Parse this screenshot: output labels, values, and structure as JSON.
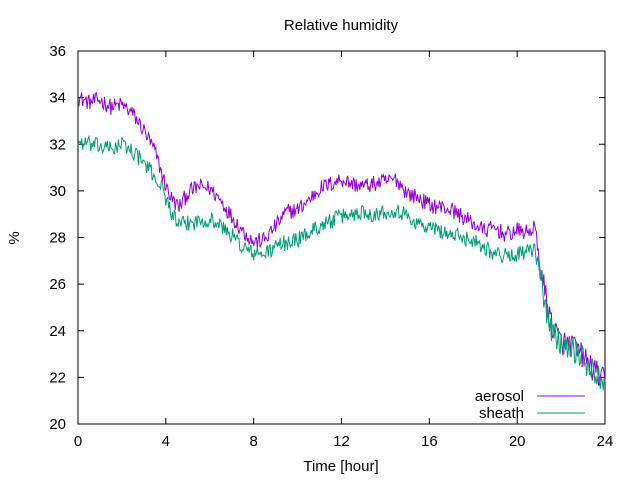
{
  "chart_data": {
    "type": "line",
    "title": "Relative humidity",
    "xlabel": "Time [hour]",
    "ylabel": "%",
    "xlim": [
      0,
      24
    ],
    "ylim": [
      20,
      36
    ],
    "x_ticks": [
      0,
      4,
      8,
      12,
      16,
      20,
      24
    ],
    "y_ticks": [
      20,
      22,
      24,
      26,
      28,
      30,
      32,
      34,
      36
    ],
    "grid": false,
    "legend_position": "bottom-right",
    "series": [
      {
        "name": "aerosol",
        "color": "#9400d3",
        "x": [
          0,
          0.5,
          1,
          1.5,
          2,
          2.5,
          3,
          3.5,
          3.8,
          4,
          4.3,
          4.6,
          5,
          5.5,
          6,
          6.5,
          7,
          7.5,
          8,
          8.5,
          9,
          9.5,
          10,
          10.5,
          11,
          11.5,
          12,
          12.5,
          13,
          13.5,
          14,
          14.5,
          15,
          15.5,
          16,
          16.5,
          17,
          17.5,
          18,
          18.5,
          19,
          19.5,
          20,
          20.5,
          20.8,
          21,
          21.3,
          21.6,
          22,
          22.5,
          23,
          23.5,
          24
        ],
        "y": [
          34.0,
          33.8,
          33.9,
          33.6,
          33.7,
          33.3,
          32.6,
          31.7,
          30.8,
          30.2,
          29.6,
          29.3,
          29.9,
          30.2,
          30.1,
          29.6,
          28.9,
          28.3,
          27.8,
          27.9,
          28.5,
          29.1,
          29.2,
          29.6,
          30.1,
          30.3,
          30.5,
          30.3,
          30.2,
          30.3,
          30.4,
          30.5,
          29.9,
          29.7,
          29.4,
          29.3,
          29.2,
          28.9,
          28.6,
          28.3,
          28.4,
          28.1,
          28.3,
          28.2,
          28.5,
          27.0,
          25.5,
          24.2,
          23.5,
          23.4,
          22.9,
          22.3,
          21.8
        ]
      },
      {
        "name": "sheath",
        "color": "#009e73",
        "x": [
          0,
          0.5,
          1,
          1.5,
          2,
          2.5,
          3,
          3.5,
          3.8,
          4,
          4.3,
          4.6,
          5,
          5.5,
          6,
          6.5,
          7,
          7.5,
          8,
          8.5,
          9,
          9.5,
          10,
          10.5,
          11,
          11.5,
          12,
          12.5,
          13,
          13.5,
          14,
          14.5,
          15,
          15.5,
          16,
          16.5,
          17,
          17.5,
          18,
          18.5,
          19,
          19.5,
          20,
          20.5,
          20.8,
          21,
          21.3,
          21.6,
          22,
          22.5,
          23,
          23.5,
          24
        ],
        "y": [
          32.1,
          32.0,
          31.9,
          31.8,
          32.0,
          31.7,
          31.2,
          30.6,
          30.2,
          29.7,
          29.0,
          28.5,
          28.6,
          28.7,
          28.8,
          28.5,
          28.1,
          27.6,
          27.3,
          27.3,
          27.6,
          27.8,
          27.9,
          28.2,
          28.5,
          28.7,
          28.9,
          29.0,
          29.1,
          29.0,
          29.1,
          29.2,
          28.9,
          28.6,
          28.4,
          28.3,
          28.1,
          28.0,
          27.9,
          27.6,
          27.3,
          27.2,
          27.3,
          27.4,
          27.4,
          26.7,
          25.0,
          23.9,
          23.5,
          23.3,
          22.8,
          22.2,
          21.9
        ]
      }
    ]
  }
}
